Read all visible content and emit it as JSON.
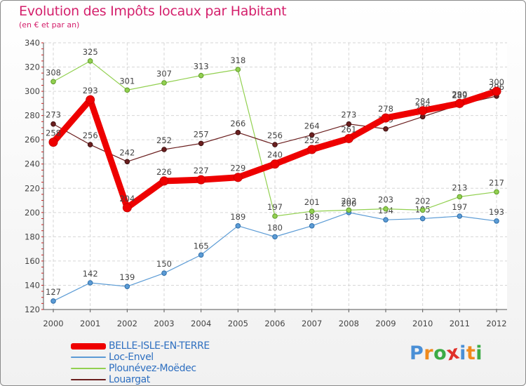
{
  "page": {
    "title": "Evolution des Impôts locaux par Habitant",
    "subtitle": "(en € et par an)",
    "brand": [
      "P",
      "r",
      "o",
      "x",
      "i",
      "t",
      "i"
    ],
    "brand_colors": [
      "#4a8fd6",
      "#f08a1c",
      "#3cab45",
      "#e0312a",
      "#4a8fd6",
      "#f08a1c",
      "#3cab45"
    ]
  },
  "chart_data": {
    "type": "line",
    "title": "Evolution des Impôts locaux par Habitant",
    "subtitle": "(en € et par an)",
    "xlabel": "",
    "ylabel": "",
    "x": [
      "2000",
      "2001",
      "2002",
      "2003",
      "2004",
      "2005",
      "2006",
      "2007",
      "2008",
      "2009",
      "2010",
      "2011",
      "2012"
    ],
    "ylim": [
      120,
      340
    ],
    "yticks": [
      120,
      140,
      160,
      180,
      200,
      220,
      240,
      260,
      280,
      300,
      320,
      340
    ],
    "grid": true,
    "legend_position": "bottom-left",
    "series": [
      {
        "name": "BELLE-ISLE-EN-TERRE",
        "color": "#ee0000",
        "values": [
          258,
          293,
          204,
          226,
          227,
          229,
          240,
          252,
          261,
          278,
          284,
          290,
          300
        ]
      },
      {
        "name": "Loc-Envel",
        "color": "#5b9bd5",
        "values": [
          127,
          142,
          139,
          150,
          165,
          189,
          180,
          189,
          200,
          194,
          195,
          197,
          193
        ]
      },
      {
        "name": "Plounévez-Moëdec",
        "color": "#92d050",
        "values": [
          308,
          325,
          301,
          307,
          313,
          318,
          197,
          201,
          202,
          203,
          202,
          213,
          217
        ]
      },
      {
        "name": "Louargat",
        "color": "#6b1f1f",
        "values": [
          273,
          256,
          242,
          252,
          257,
          266,
          256,
          264,
          273,
          269,
          279,
          289,
          296
        ]
      }
    ]
  }
}
